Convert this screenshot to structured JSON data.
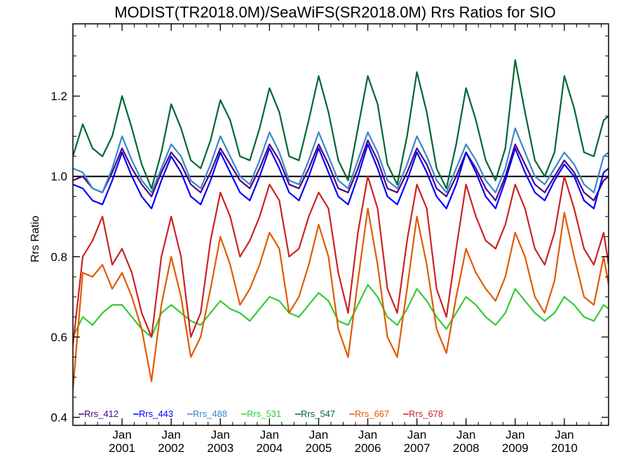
{
  "chart_data": {
    "type": "line",
    "title": "MODIST(TR2018.0M)/SeaWiFS(SR2018.0M)  Rrs Ratios for SIO",
    "xlabel": "",
    "ylabel": "Rrs Ratio",
    "xlim": [
      2000.0,
      2010.9
    ],
    "ylim": [
      0.38,
      1.38
    ],
    "y_ticks": [
      0.4,
      0.6,
      0.8,
      1.0,
      1.2
    ],
    "y_tick_labels": [
      "0.4",
      "0.6",
      "0.8",
      "1.0",
      "1.2"
    ],
    "x_ticks": [
      {
        "value": 2001.0,
        "month": "Jan",
        "year": "2001"
      },
      {
        "value": 2002.0,
        "month": "Jan",
        "year": "2002"
      },
      {
        "value": 2003.0,
        "month": "Jan",
        "year": "2003"
      },
      {
        "value": 2004.0,
        "month": "Jan",
        "year": "2004"
      },
      {
        "value": 2005.0,
        "month": "Jan",
        "year": "2005"
      },
      {
        "value": 2006.0,
        "month": "Jan",
        "year": "2006"
      },
      {
        "value": 2007.0,
        "month": "Jan",
        "year": "2007"
      },
      {
        "value": 2008.0,
        "month": "Jan",
        "year": "2008"
      },
      {
        "value": 2009.0,
        "month": "Jan",
        "year": "2009"
      },
      {
        "value": 2010.0,
        "month": "Jan",
        "year": "2010"
      }
    ],
    "reference_line": 1.0,
    "legend_position": "bottom-left",
    "grid": false,
    "series": [
      {
        "name": "Rrs_412",
        "color": "#4B0082",
        "x": [
          2000.0,
          2000.2,
          2000.4,
          2000.6,
          2000.8,
          2001.0,
          2001.2,
          2001.4,
          2001.6,
          2001.8,
          2002.0,
          2002.2,
          2002.4,
          2002.6,
          2002.8,
          2003.0,
          2003.2,
          2003.4,
          2003.6,
          2003.8,
          2004.0,
          2004.2,
          2004.4,
          2004.6,
          2004.8,
          2005.0,
          2005.2,
          2005.4,
          2005.6,
          2005.8,
          2006.0,
          2006.2,
          2006.4,
          2006.6,
          2006.8,
          2007.0,
          2007.2,
          2007.4,
          2007.6,
          2007.8,
          2008.0,
          2008.2,
          2008.4,
          2008.6,
          2008.8,
          2009.0,
          2009.2,
          2009.4,
          2009.6,
          2009.8,
          2010.0,
          2010.2,
          2010.4,
          2010.6,
          2010.8,
          2010.9
        ],
        "y": [
          0.99,
          1.0,
          0.97,
          0.96,
          1.01,
          1.07,
          1.02,
          0.98,
          0.95,
          1.01,
          1.06,
          1.03,
          0.98,
          0.96,
          1.01,
          1.07,
          1.03,
          0.99,
          0.97,
          1.02,
          1.08,
          1.04,
          0.98,
          0.97,
          1.02,
          1.08,
          1.03,
          0.97,
          0.96,
          1.02,
          1.09,
          1.04,
          0.97,
          0.96,
          1.01,
          1.07,
          1.03,
          0.97,
          0.95,
          1.0,
          1.06,
          1.02,
          0.97,
          0.94,
          1.0,
          1.08,
          1.03,
          0.98,
          0.96,
          1.0,
          1.04,
          1.01,
          0.96,
          0.94,
          0.99,
          1.0
        ]
      },
      {
        "name": "Rrs_443",
        "color": "#0000FF",
        "x": [
          2000.0,
          2000.2,
          2000.4,
          2000.6,
          2000.8,
          2001.0,
          2001.2,
          2001.4,
          2001.6,
          2001.8,
          2002.0,
          2002.2,
          2002.4,
          2002.6,
          2002.8,
          2003.0,
          2003.2,
          2003.4,
          2003.6,
          2003.8,
          2004.0,
          2004.2,
          2004.4,
          2004.6,
          2004.8,
          2005.0,
          2005.2,
          2005.4,
          2005.6,
          2005.8,
          2006.0,
          2006.2,
          2006.4,
          2006.6,
          2006.8,
          2007.0,
          2007.2,
          2007.4,
          2007.6,
          2007.8,
          2008.0,
          2008.2,
          2008.4,
          2008.6,
          2008.8,
          2009.0,
          2009.2,
          2009.4,
          2009.6,
          2009.8,
          2010.0,
          2010.2,
          2010.4,
          2010.6,
          2010.8,
          2010.9
        ],
        "y": [
          0.98,
          0.97,
          0.94,
          0.93,
          0.99,
          1.06,
          1.0,
          0.95,
          0.92,
          0.99,
          1.05,
          1.01,
          0.95,
          0.93,
          0.99,
          1.06,
          1.01,
          0.96,
          0.94,
          1.0,
          1.07,
          1.02,
          0.96,
          0.94,
          1.0,
          1.07,
          1.01,
          0.95,
          0.93,
          1.0,
          1.08,
          1.02,
          0.95,
          0.93,
          0.99,
          1.06,
          1.01,
          0.95,
          0.92,
          0.98,
          1.06,
          1.01,
          0.95,
          0.92,
          0.99,
          1.07,
          1.01,
          0.96,
          0.94,
          0.99,
          1.03,
          1.0,
          0.94,
          0.92,
          1.01,
          1.02
        ]
      },
      {
        "name": "Rrs_488",
        "color": "#3A87C8",
        "x": [
          2000.0,
          2000.2,
          2000.4,
          2000.6,
          2000.8,
          2001.0,
          2001.2,
          2001.4,
          2001.6,
          2001.8,
          2002.0,
          2002.2,
          2002.4,
          2002.6,
          2002.8,
          2003.0,
          2003.2,
          2003.4,
          2003.6,
          2003.8,
          2004.0,
          2004.2,
          2004.4,
          2004.6,
          2004.8,
          2005.0,
          2005.2,
          2005.4,
          2005.6,
          2005.8,
          2006.0,
          2006.2,
          2006.4,
          2006.6,
          2006.8,
          2007.0,
          2007.2,
          2007.4,
          2007.6,
          2007.8,
          2008.0,
          2008.2,
          2008.4,
          2008.6,
          2008.8,
          2009.0,
          2009.2,
          2009.4,
          2009.6,
          2009.8,
          2010.0,
          2010.2,
          2010.4,
          2010.6,
          2010.8,
          2010.9
        ],
        "y": [
          1.02,
          1.01,
          0.97,
          0.96,
          1.02,
          1.1,
          1.04,
          0.99,
          0.96,
          1.02,
          1.08,
          1.05,
          0.99,
          0.97,
          1.03,
          1.1,
          1.05,
          1.0,
          0.98,
          1.04,
          1.11,
          1.06,
          0.99,
          0.98,
          1.04,
          1.11,
          1.05,
          0.99,
          0.97,
          1.04,
          1.11,
          1.06,
          0.99,
          0.97,
          1.03,
          1.1,
          1.05,
          0.99,
          0.96,
          1.02,
          1.08,
          1.04,
          0.99,
          0.96,
          1.02,
          1.12,
          1.06,
          1.0,
          0.98,
          1.02,
          1.06,
          1.03,
          0.98,
          0.96,
          1.05,
          1.06
        ]
      },
      {
        "name": "Rrs_531",
        "color": "#33CC33",
        "x": [
          2000.0,
          2000.2,
          2000.4,
          2000.6,
          2000.8,
          2001.0,
          2001.2,
          2001.4,
          2001.6,
          2001.8,
          2002.0,
          2002.2,
          2002.4,
          2002.6,
          2002.8,
          2003.0,
          2003.2,
          2003.4,
          2003.6,
          2003.8,
          2004.0,
          2004.2,
          2004.4,
          2004.6,
          2004.8,
          2005.0,
          2005.2,
          2005.4,
          2005.6,
          2005.8,
          2006.0,
          2006.2,
          2006.4,
          2006.6,
          2006.8,
          2007.0,
          2007.2,
          2007.4,
          2007.6,
          2007.8,
          2008.0,
          2008.2,
          2008.4,
          2008.6,
          2008.8,
          2009.0,
          2009.2,
          2009.4,
          2009.6,
          2009.8,
          2010.0,
          2010.2,
          2010.4,
          2010.6,
          2010.8,
          2010.9
        ],
        "y": [
          0.6,
          0.65,
          0.63,
          0.66,
          0.68,
          0.68,
          0.65,
          0.62,
          0.6,
          0.66,
          0.68,
          0.66,
          0.64,
          0.63,
          0.66,
          0.69,
          0.67,
          0.66,
          0.64,
          0.67,
          0.7,
          0.69,
          0.66,
          0.65,
          0.68,
          0.71,
          0.69,
          0.64,
          0.63,
          0.68,
          0.73,
          0.7,
          0.65,
          0.63,
          0.67,
          0.72,
          0.69,
          0.65,
          0.62,
          0.66,
          0.7,
          0.68,
          0.65,
          0.63,
          0.66,
          0.72,
          0.69,
          0.66,
          0.64,
          0.66,
          0.7,
          0.68,
          0.65,
          0.64,
          0.68,
          0.67
        ]
      },
      {
        "name": "Rrs_547",
        "color": "#006633",
        "x": [
          2000.0,
          2000.2,
          2000.4,
          2000.6,
          2000.8,
          2001.0,
          2001.2,
          2001.4,
          2001.6,
          2001.8,
          2002.0,
          2002.2,
          2002.4,
          2002.6,
          2002.8,
          2003.0,
          2003.2,
          2003.4,
          2003.6,
          2003.8,
          2004.0,
          2004.2,
          2004.4,
          2004.6,
          2004.8,
          2005.0,
          2005.2,
          2005.4,
          2005.6,
          2005.8,
          2006.0,
          2006.2,
          2006.4,
          2006.6,
          2006.8,
          2007.0,
          2007.2,
          2007.4,
          2007.6,
          2007.8,
          2008.0,
          2008.2,
          2008.4,
          2008.6,
          2008.8,
          2009.0,
          2009.2,
          2009.4,
          2009.6,
          2009.8,
          2010.0,
          2010.2,
          2010.4,
          2010.6,
          2010.8,
          2010.9
        ],
        "y": [
          1.05,
          1.13,
          1.07,
          1.05,
          1.1,
          1.2,
          1.12,
          1.03,
          0.97,
          1.06,
          1.18,
          1.12,
          1.04,
          1.02,
          1.09,
          1.19,
          1.14,
          1.05,
          1.04,
          1.12,
          1.22,
          1.16,
          1.05,
          1.04,
          1.14,
          1.25,
          1.16,
          1.04,
          0.99,
          1.12,
          1.25,
          1.18,
          1.03,
          0.98,
          1.1,
          1.26,
          1.16,
          1.02,
          0.97,
          1.08,
          1.22,
          1.14,
          1.04,
          0.99,
          1.07,
          1.29,
          1.16,
          1.04,
          1.0,
          1.06,
          1.25,
          1.17,
          1.06,
          1.05,
          1.14,
          1.15
        ]
      },
      {
        "name": "Rrs_667",
        "color": "#E05A00",
        "x": [
          2000.0,
          2000.2,
          2000.4,
          2000.6,
          2000.8,
          2001.0,
          2001.2,
          2001.4,
          2001.6,
          2001.8,
          2002.0,
          2002.2,
          2002.4,
          2002.6,
          2002.8,
          2003.0,
          2003.2,
          2003.4,
          2003.6,
          2003.8,
          2004.0,
          2004.2,
          2004.4,
          2004.6,
          2004.8,
          2005.0,
          2005.2,
          2005.4,
          2005.6,
          2005.8,
          2006.0,
          2006.2,
          2006.4,
          2006.6,
          2006.8,
          2007.0,
          2007.2,
          2007.4,
          2007.6,
          2007.8,
          2008.0,
          2008.2,
          2008.4,
          2008.6,
          2008.8,
          2009.0,
          2009.2,
          2009.4,
          2009.6,
          2009.8,
          2010.0,
          2010.2,
          2010.4,
          2010.6,
          2010.8,
          2010.9
        ],
        "y": [
          0.47,
          0.76,
          0.75,
          0.78,
          0.72,
          0.76,
          0.7,
          0.62,
          0.49,
          0.68,
          0.8,
          0.7,
          0.55,
          0.6,
          0.72,
          0.85,
          0.78,
          0.68,
          0.72,
          0.78,
          0.86,
          0.82,
          0.66,
          0.7,
          0.78,
          0.88,
          0.8,
          0.62,
          0.55,
          0.74,
          0.92,
          0.78,
          0.6,
          0.55,
          0.72,
          0.9,
          0.78,
          0.62,
          0.56,
          0.7,
          0.82,
          0.76,
          0.72,
          0.69,
          0.75,
          0.86,
          0.8,
          0.7,
          0.66,
          0.74,
          0.91,
          0.8,
          0.7,
          0.68,
          0.8,
          0.73
        ]
      },
      {
        "name": "Rrs_678",
        "color": "#CC2222",
        "x": [
          2000.0,
          2000.2,
          2000.4,
          2000.6,
          2000.8,
          2001.0,
          2001.2,
          2001.4,
          2001.6,
          2001.8,
          2002.0,
          2002.2,
          2002.4,
          2002.6,
          2002.8,
          2003.0,
          2003.2,
          2003.4,
          2003.6,
          2003.8,
          2004.0,
          2004.2,
          2004.4,
          2004.6,
          2004.8,
          2005.0,
          2005.2,
          2005.4,
          2005.6,
          2005.8,
          2006.0,
          2006.2,
          2006.4,
          2006.6,
          2006.8,
          2007.0,
          2007.2,
          2007.4,
          2007.6,
          2007.8,
          2008.0,
          2008.2,
          2008.4,
          2008.6,
          2008.8,
          2009.0,
          2009.2,
          2009.4,
          2009.6,
          2009.8,
          2010.0,
          2010.2,
          2010.4,
          2010.6,
          2010.8,
          2010.9
        ],
        "y": [
          0.58,
          0.8,
          0.84,
          0.9,
          0.78,
          0.82,
          0.76,
          0.66,
          0.6,
          0.8,
          0.9,
          0.8,
          0.6,
          0.66,
          0.84,
          0.96,
          0.9,
          0.8,
          0.84,
          0.9,
          0.98,
          0.94,
          0.8,
          0.82,
          0.9,
          0.96,
          0.92,
          0.76,
          0.66,
          0.86,
          1.0,
          0.92,
          0.72,
          0.66,
          0.84,
          0.98,
          0.92,
          0.72,
          0.65,
          0.82,
          0.98,
          0.9,
          0.84,
          0.82,
          0.88,
          0.98,
          0.92,
          0.82,
          0.78,
          0.86,
          1.0,
          0.92,
          0.82,
          0.78,
          0.86,
          0.78
        ]
      }
    ]
  }
}
